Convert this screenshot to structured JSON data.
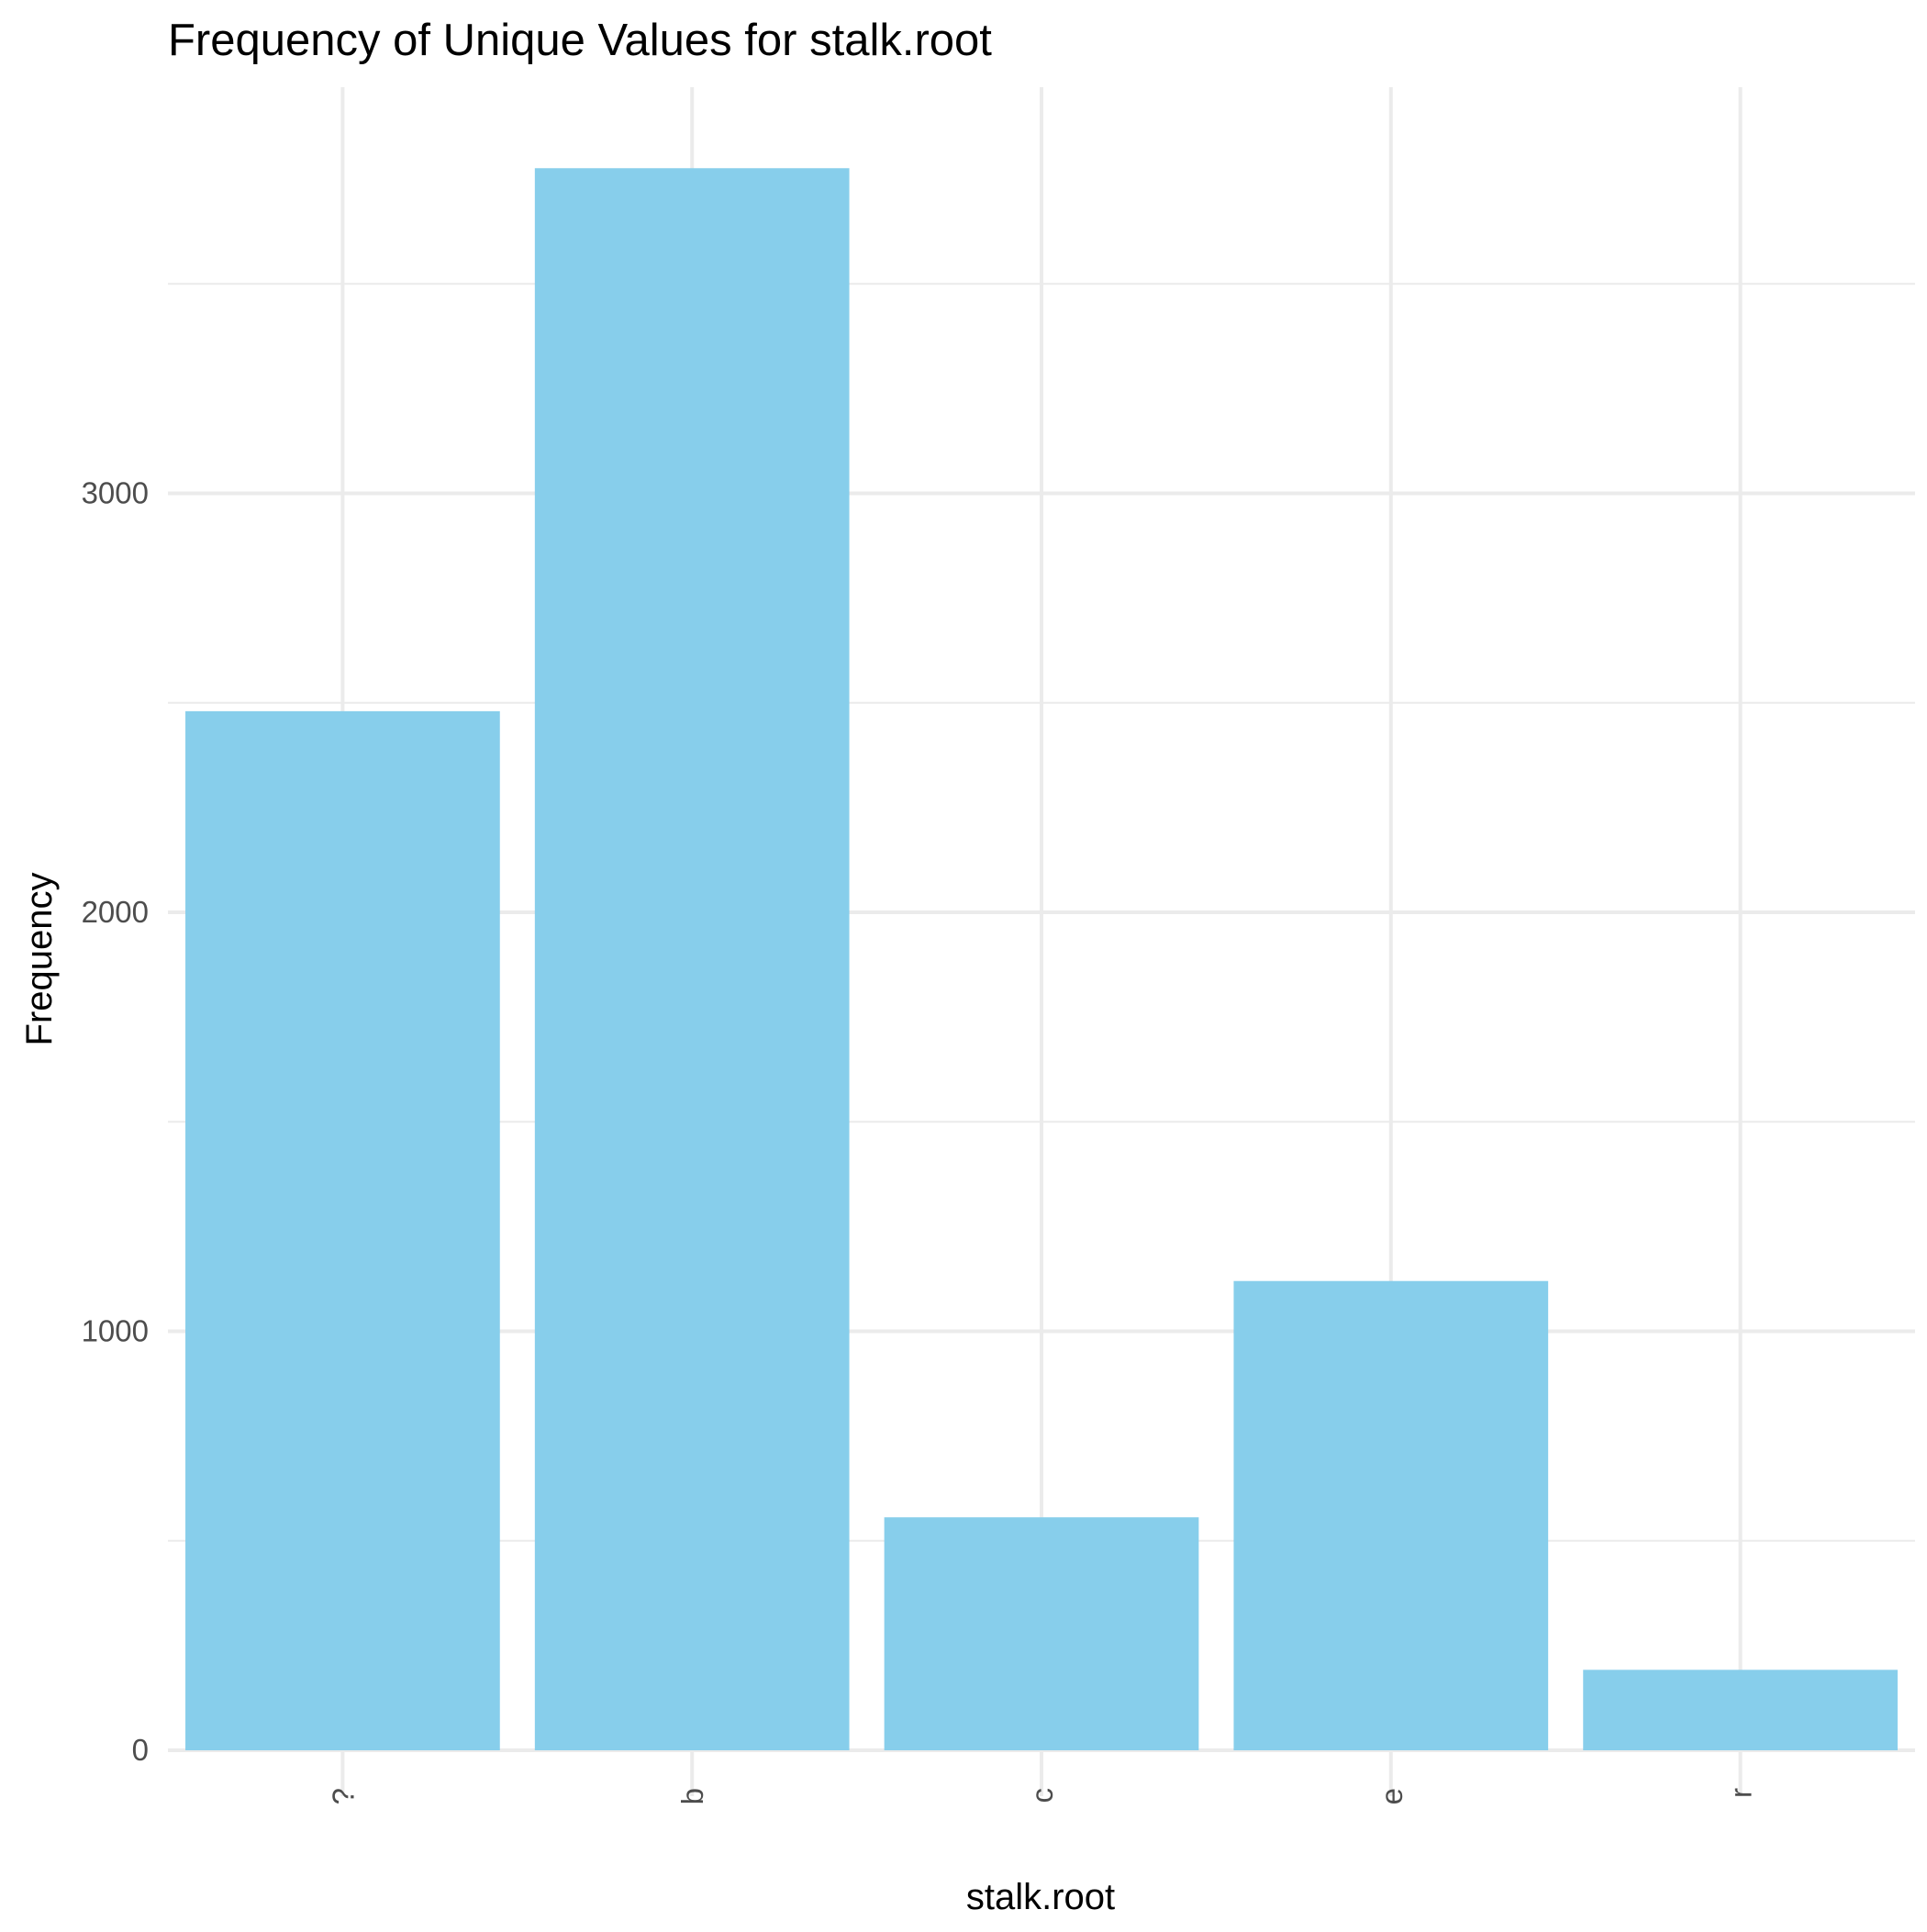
{
  "chart_data": {
    "type": "bar",
    "title": "Frequency of Unique Values for stalk.root",
    "xlabel": "stalk.root",
    "ylabel": "Frequency",
    "categories": [
      "?",
      "b",
      "c",
      "e",
      "r"
    ],
    "values": [
      2480,
      3776,
      556,
      1120,
      192
    ],
    "ylim": [
      0,
      4000
    ],
    "yticks": [
      0,
      1000,
      2000,
      3000
    ],
    "bar_color": "#87CEEB",
    "grid": true,
    "x_tick_rotation": "vertical"
  }
}
